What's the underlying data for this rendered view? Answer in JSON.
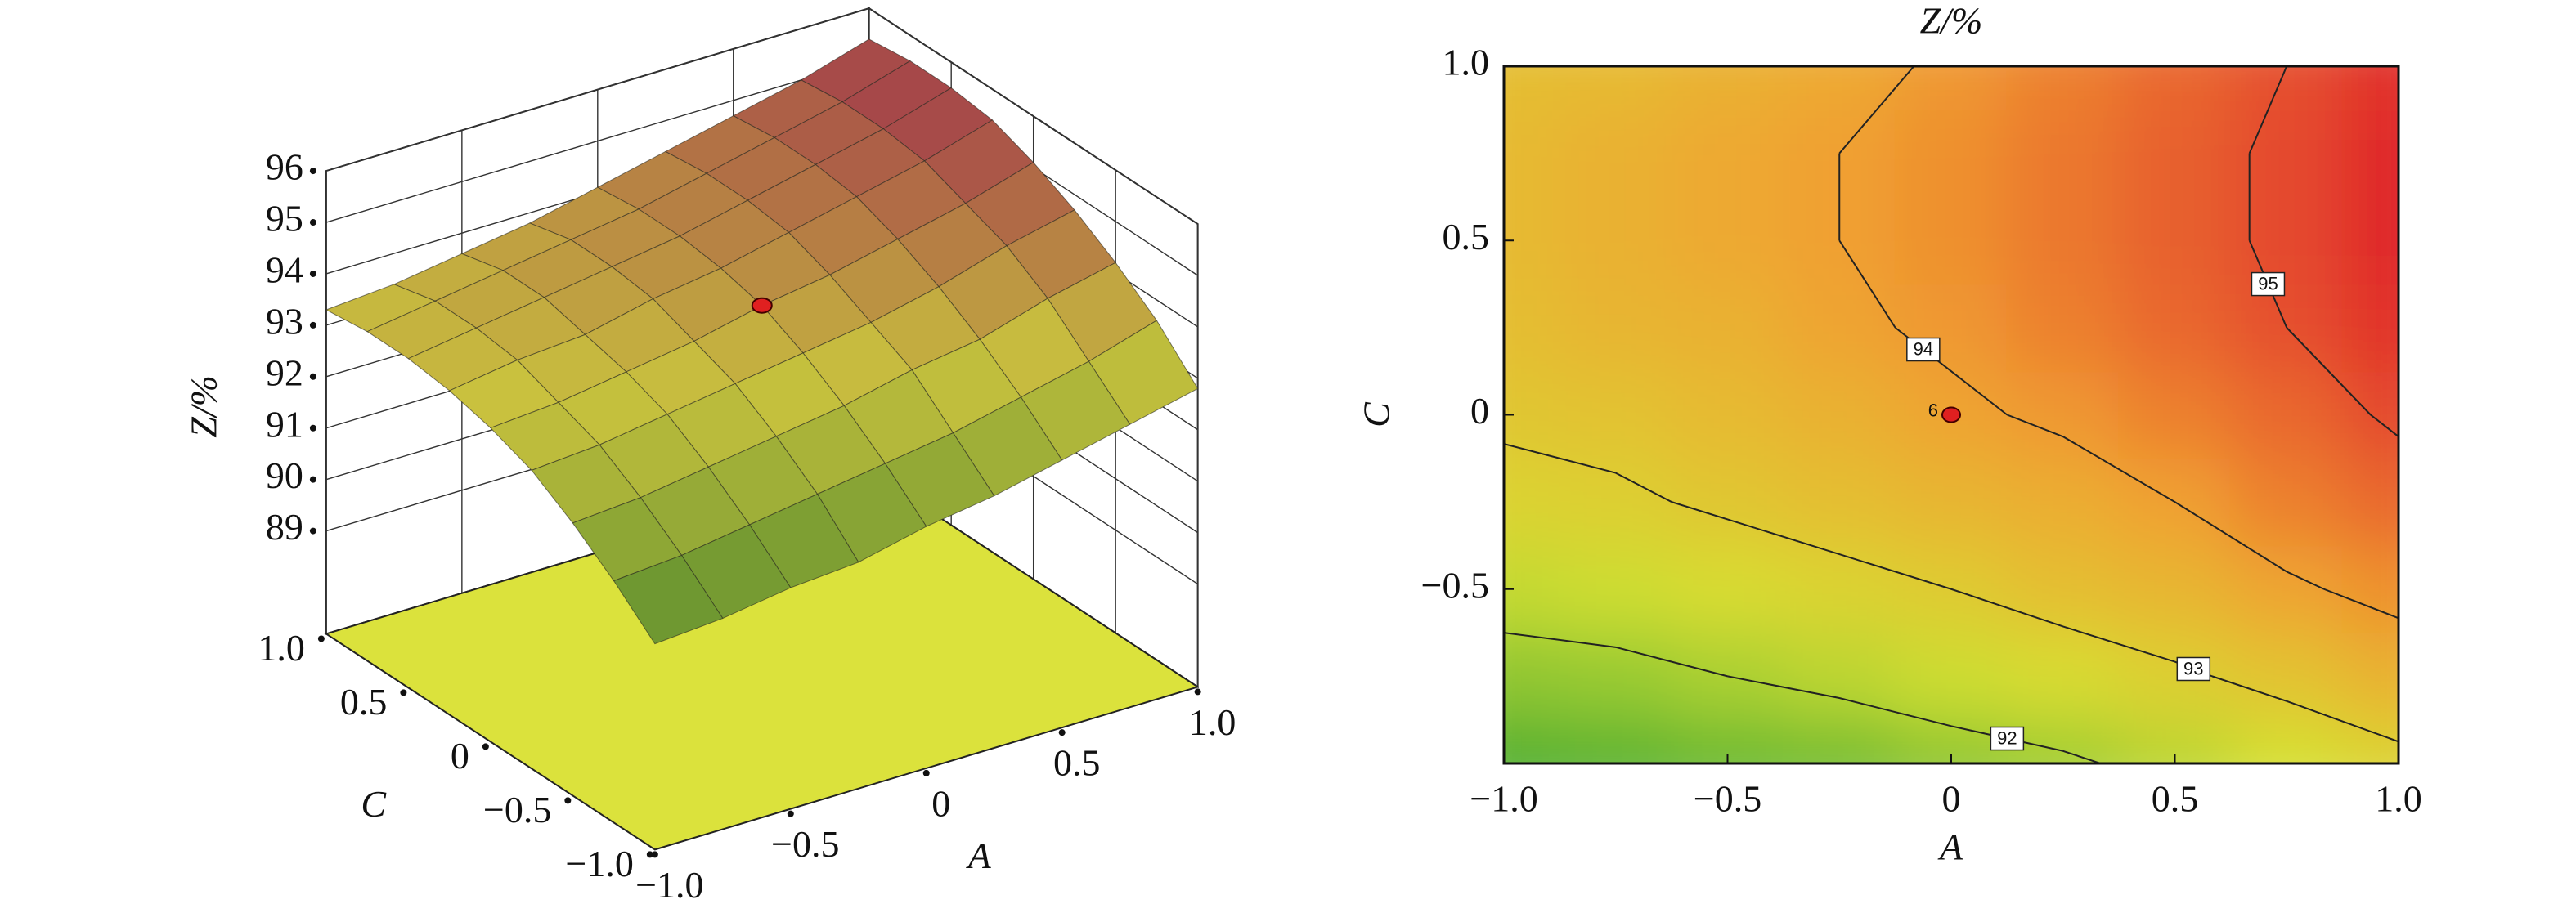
{
  "chart_data": [
    {
      "type": "surface3d",
      "zlabel": "Z/%",
      "xlabel": "A",
      "ylabel": "C",
      "x": [
        -1,
        -0.75,
        -0.5,
        -0.25,
        0,
        0.25,
        0.5,
        0.75,
        1
      ],
      "y": [
        -1,
        -0.75,
        -0.5,
        -0.25,
        0,
        0.25,
        0.5,
        0.75,
        1
      ],
      "z": [
        [
          91.0,
          91.1,
          91.3,
          91.4,
          91.7,
          91.9,
          92.2,
          92.5,
          92.8
        ],
        [
          91.7,
          91.8,
          92.0,
          92.2,
          92.4,
          92.6,
          92.9,
          93.2,
          93.6
        ],
        [
          92.3,
          92.4,
          92.6,
          92.8,
          93.0,
          93.3,
          93.5,
          93.9,
          94.2
        ],
        [
          92.8,
          92.9,
          93.1,
          93.3,
          93.5,
          93.7,
          94.0,
          94.4,
          94.7
        ],
        [
          93.1,
          93.2,
          93.4,
          93.6,
          93.9,
          94.1,
          94.4,
          94.7,
          95.1
        ],
        [
          93.3,
          93.5,
          93.6,
          93.9,
          94.1,
          94.4,
          94.7,
          95.0,
          95.4
        ],
        [
          93.4,
          93.6,
          93.8,
          94.0,
          94.2,
          94.5,
          94.8,
          95.1,
          95.5
        ],
        [
          93.4,
          93.6,
          93.8,
          94.0,
          94.2,
          94.5,
          94.8,
          95.1,
          95.5
        ],
        [
          93.3,
          93.4,
          93.6,
          93.8,
          94.1,
          94.4,
          94.7,
          95.0,
          95.4
        ]
      ],
      "xlim": [
        -1,
        1
      ],
      "ylim": [
        -1,
        1
      ],
      "zlim": [
        87,
        96
      ],
      "xticks": [
        {
          "value": -1,
          "label": "−1.0"
        },
        {
          "value": -0.5,
          "label": "−0.5"
        },
        0,
        0.5,
        {
          "value": 1,
          "label": "1.0"
        }
      ],
      "yticks": [
        {
          "value": -1,
          "label": "−1.0"
        },
        {
          "value": -0.5,
          "label": "−0.5"
        },
        0,
        0.5,
        {
          "value": 1,
          "label": "1.0"
        }
      ],
      "zticks": [
        89,
        90,
        91,
        92,
        93,
        94,
        95,
        96
      ],
      "colormap": [
        "#5b8f2e",
        "#c9c23e",
        "#a33c4a"
      ],
      "floor_color": "#dbe23c",
      "point": {
        "x": 0,
        "y": 0,
        "z": 93.9
      }
    },
    {
      "type": "contour",
      "title": "Z/%",
      "xlabel": "A",
      "ylabel": "C",
      "x": [
        -1,
        -0.75,
        -0.5,
        -0.25,
        0,
        0.25,
        0.5,
        0.75,
        1
      ],
      "y": [
        -1,
        -0.75,
        -0.5,
        -0.25,
        0,
        0.25,
        0.5,
        0.75,
        1
      ],
      "z": [
        [
          91.0,
          91.1,
          91.3,
          91.4,
          91.7,
          91.9,
          92.2,
          92.5,
          92.8
        ],
        [
          91.7,
          91.8,
          92.0,
          92.2,
          92.4,
          92.6,
          92.9,
          93.2,
          93.6
        ],
        [
          92.3,
          92.4,
          92.6,
          92.8,
          93.0,
          93.3,
          93.5,
          93.9,
          94.2
        ],
        [
          92.8,
          92.9,
          93.1,
          93.3,
          93.5,
          93.7,
          94.0,
          94.4,
          94.7
        ],
        [
          93.1,
          93.2,
          93.4,
          93.6,
          93.9,
          94.1,
          94.4,
          94.7,
          95.1
        ],
        [
          93.3,
          93.5,
          93.6,
          93.9,
          94.1,
          94.4,
          94.7,
          95.0,
          95.4
        ],
        [
          93.4,
          93.6,
          93.8,
          94.0,
          94.2,
          94.5,
          94.8,
          95.1,
          95.5
        ],
        [
          93.4,
          93.6,
          93.8,
          94.0,
          94.2,
          94.5,
          94.8,
          95.1,
          95.5
        ],
        [
          93.3,
          93.4,
          93.6,
          93.8,
          94.1,
          94.4,
          94.7,
          95.0,
          95.4
        ]
      ],
      "levels": [
        92,
        93,
        94,
        95
      ],
      "xlim": [
        -1,
        1
      ],
      "ylim": [
        -1,
        1
      ],
      "xticks": [
        {
          "value": -1,
          "label": "−1.0"
        },
        {
          "value": -0.5,
          "label": "−0.5"
        },
        0,
        0.5,
        {
          "value": 1,
          "label": "1.0"
        }
      ],
      "yticks": [
        {
          "value": -0.5,
          "label": "−0.5"
        },
        0,
        0.5,
        {
          "value": 1,
          "label": "1.0"
        }
      ],
      "colormap": [
        "#52b030",
        "#d6e032",
        "#f0a030",
        "#e0282c"
      ],
      "point": {
        "label": "6",
        "x": 0,
        "y": 0
      }
    }
  ]
}
